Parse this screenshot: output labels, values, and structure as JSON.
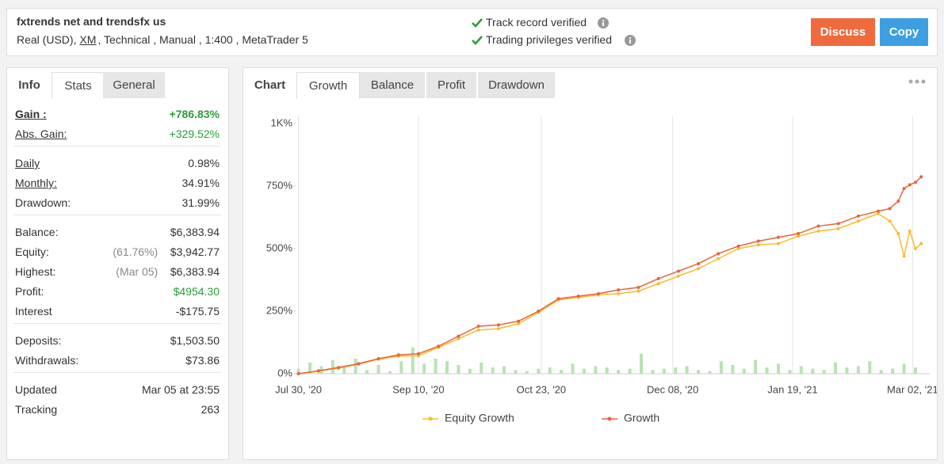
{
  "header": {
    "title": "fxtrends net and trendsfx us",
    "account": "Real (USD),",
    "broker": "XM",
    "details": ", Technical , Manual , 1:400 , MetaTrader 5",
    "verified": [
      "Track record verified",
      "Trading privileges verified"
    ],
    "buttons": [
      "Discuss",
      "Copy"
    ]
  },
  "left_tabs": [
    "Info",
    "Stats",
    "General"
  ],
  "stats": [
    [
      {
        "label": "Gain :",
        "value": "+786.83%"
      },
      {
        "label": "Abs. Gain:",
        "value": "+329.52%"
      }
    ],
    [
      {
        "label": "Daily",
        "value": "0.98%"
      },
      {
        "label": "Monthly:",
        "value": "34.91%"
      },
      {
        "label": "Drawdown:",
        "value": "31.99%"
      }
    ],
    [
      {
        "label": "Balance:",
        "value": "$6,383.94"
      },
      {
        "label": "Equity:",
        "note": "(61.76%)",
        "value": "$3,942.77"
      },
      {
        "label": "Highest:",
        "note": "(Mar 05)",
        "value": "$6,383.94"
      },
      {
        "label": "Profit:",
        "value": "$4954.30"
      },
      {
        "label": "Interest",
        "value": "-$175.75"
      }
    ],
    [
      {
        "label": "Deposits:",
        "value": "$1,503.50"
      },
      {
        "label": "Withdrawals:",
        "value": "$73.86"
      }
    ],
    [
      {
        "label": "Updated",
        "value": "Mar 05 at 23:55"
      },
      {
        "label": "Tracking",
        "value": "263"
      }
    ]
  ],
  "chart_tabs": [
    "Chart",
    "Growth",
    "Balance",
    "Profit",
    "Drawdown"
  ],
  "chart_data": {
    "type": "line",
    "x": [
      0,
      7,
      14,
      21,
      28,
      35,
      42,
      49,
      56,
      63,
      70,
      77,
      84,
      91,
      98,
      105,
      112,
      119,
      126,
      133,
      140,
      147,
      154,
      161,
      168,
      175,
      182,
      189,
      196,
      203,
      207,
      210,
      212,
      214,
      216,
      218
    ],
    "series": [
      {
        "name": "Equity Growth",
        "color": "#f5bd2f",
        "values": [
          0,
          10,
          22,
          38,
          58,
          70,
          72,
          105,
          140,
          175,
          180,
          200,
          245,
          295,
          305,
          315,
          320,
          330,
          360,
          390,
          420,
          460,
          500,
          515,
          520,
          550,
          570,
          580,
          610,
          640,
          610,
          560,
          470,
          570,
          500,
          520
        ]
      },
      {
        "name": "Growth",
        "color": "#e8643c",
        "values": [
          0,
          12,
          25,
          40,
          60,
          75,
          80,
          110,
          150,
          190,
          195,
          210,
          250,
          300,
          310,
          320,
          335,
          345,
          380,
          410,
          440,
          480,
          510,
          530,
          545,
          560,
          590,
          600,
          630,
          650,
          660,
          690,
          740,
          755,
          765,
          787
        ]
      }
    ],
    "bars": {
      "color": "#b9e2b3",
      "x": [
        0,
        4,
        8,
        12,
        16,
        20,
        24,
        28,
        32,
        36,
        40,
        44,
        48,
        52,
        56,
        60,
        64,
        68,
        72,
        76,
        80,
        84,
        88,
        92,
        96,
        100,
        104,
        108,
        112,
        116,
        120,
        124,
        128,
        132,
        136,
        140,
        144,
        148,
        152,
        156,
        160,
        164,
        168,
        172,
        176,
        180,
        184,
        188,
        192,
        196,
        200,
        204,
        208,
        212,
        216
      ],
      "values": [
        20,
        45,
        30,
        55,
        25,
        60,
        15,
        35,
        10,
        50,
        105,
        40,
        60,
        50,
        35,
        20,
        45,
        25,
        30,
        15,
        10,
        20,
        25,
        15,
        40,
        20,
        30,
        25,
        15,
        20,
        80,
        15,
        20,
        25,
        30,
        15,
        10,
        50,
        35,
        20,
        55,
        25,
        40,
        15,
        30,
        20,
        15,
        45,
        25,
        30,
        50,
        15,
        20,
        40,
        25
      ]
    },
    "xlim": [
      -1,
      221
    ],
    "xticks": [
      {
        "value": 0,
        "label": "Jul 30, '20"
      },
      {
        "value": 42,
        "label": "Sep 10, '20"
      },
      {
        "value": 85,
        "label": "Oct 23, '20"
      },
      {
        "value": 131,
        "label": "Dec 08, '20"
      },
      {
        "value": 173,
        "label": "Jan 19, '21"
      },
      {
        "value": 215,
        "label": "Mar 02, '21"
      }
    ],
    "ylim": [
      0,
      1000
    ],
    "yticks": [
      {
        "value": 0,
        "label": "0%"
      },
      {
        "value": 250,
        "label": "250%"
      },
      {
        "value": 500,
        "label": "500%"
      },
      {
        "value": 750,
        "label": "750%"
      },
      {
        "value": 1000,
        "label": "1K%"
      }
    ],
    "grid": true
  }
}
